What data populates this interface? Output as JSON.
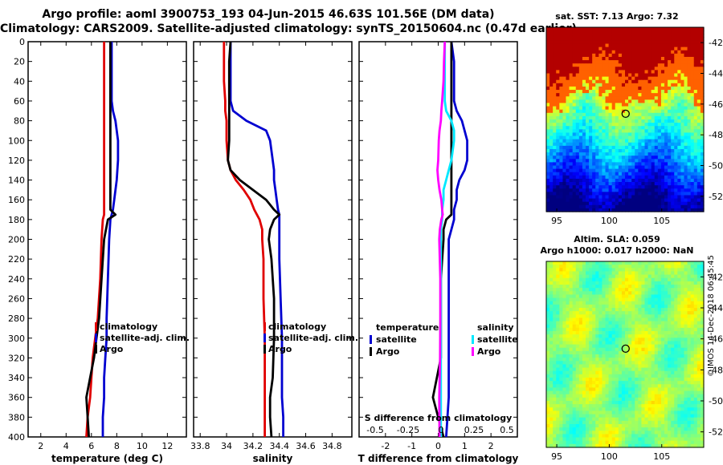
{
  "title_line1": "Argo profile: aoml 3900753_193 04-Jun-2015 46.63S 101.56E (DM data)",
  "title_line2": "Climatology: CARS2009. Satellite-adjusted climatology: synTS_20150604.nc (0.47d earlier)",
  "credit": "©IMOS 14-Dec-2018 06:45:45",
  "colors": {
    "climatology": "#e00000",
    "satellite": "#0000d0",
    "argo": "#000000",
    "s_diff": "#ff00ff",
    "t_diff": "#00e8ff"
  },
  "depth_ticks": [
    "0",
    "20",
    "40",
    "60",
    "80",
    "100",
    "120",
    "140",
    "160",
    "180",
    "200",
    "220",
    "240",
    "260",
    "280",
    "300",
    "320",
    "340",
    "360",
    "380",
    "400"
  ],
  "chart_data": [
    {
      "type": "line",
      "xlabel": "temperature (deg C)",
      "ylabel": "depth",
      "xlim": [
        1,
        13.5
      ],
      "ylim": [
        400,
        0
      ],
      "x_ticks": [
        "2",
        "4",
        "6",
        "8",
        "10",
        "12"
      ],
      "legend": [
        "climatology",
        "satellite-adj. clim.",
        "Argo"
      ],
      "depth": [
        0,
        20,
        40,
        60,
        70,
        80,
        90,
        100,
        120,
        140,
        160,
        170,
        175,
        180,
        200,
        240,
        280,
        300,
        320,
        340,
        360,
        380,
        400
      ],
      "series": [
        {
          "name": "climatology",
          "values": [
            7.0,
            7.0,
            7.0,
            7.0,
            7.0,
            7.0,
            7.0,
            7.0,
            7.0,
            7.0,
            7.0,
            7.0,
            7.0,
            6.9,
            6.8,
            6.7,
            6.5,
            6.3,
            6.1,
            6.0,
            5.9,
            5.7,
            5.6
          ]
        },
        {
          "name": "satellite-adj. clim.",
          "values": [
            7.6,
            7.6,
            7.6,
            7.6,
            7.7,
            7.9,
            8.0,
            8.1,
            8.1,
            8.0,
            7.8,
            7.7,
            7.6,
            7.5,
            7.4,
            7.3,
            7.2,
            7.2,
            7.1,
            7.0,
            7.0,
            6.9,
            6.9
          ]
        },
        {
          "name": "Argo",
          "values": [
            7.5,
            7.5,
            7.5,
            7.5,
            7.5,
            7.5,
            7.5,
            7.5,
            7.5,
            7.5,
            7.5,
            7.5,
            7.9,
            7.3,
            7.0,
            6.8,
            6.6,
            6.4,
            6.2,
            5.9,
            5.6,
            5.7,
            5.8
          ]
        }
      ]
    },
    {
      "type": "line",
      "xlabel": "salinity",
      "ylabel": "depth",
      "xlim": [
        33.75,
        34.95
      ],
      "ylim": [
        400,
        0
      ],
      "x_ticks": [
        "33.8",
        "34",
        "34.2",
        "34.4",
        "34.6",
        "34.8"
      ],
      "legend": [
        "climatology",
        "satellite-adj. clim.",
        "Argo"
      ],
      "depth": [
        0,
        20,
        40,
        60,
        70,
        80,
        90,
        100,
        120,
        130,
        140,
        150,
        160,
        170,
        175,
        180,
        190,
        200,
        220,
        260,
        300,
        340,
        360,
        380,
        400
      ],
      "series": [
        {
          "name": "climatology",
          "values": [
            33.98,
            33.98,
            33.98,
            33.99,
            33.99,
            34.0,
            34.0,
            34.0,
            34.01,
            34.03,
            34.07,
            34.13,
            34.18,
            34.21,
            34.23,
            34.25,
            34.27,
            34.27,
            34.28,
            34.28,
            34.29,
            34.29,
            34.29,
            34.29,
            34.29
          ]
        },
        {
          "name": "satellite-adj. clim.",
          "values": [
            34.03,
            34.03,
            34.03,
            34.03,
            34.05,
            34.15,
            34.3,
            34.33,
            34.35,
            34.36,
            34.36,
            34.37,
            34.38,
            34.39,
            34.4,
            34.4,
            34.4,
            34.4,
            34.4,
            34.41,
            34.42,
            34.42,
            34.42,
            34.43,
            34.43
          ]
        },
        {
          "name": "Argo",
          "values": [
            34.03,
            34.02,
            34.02,
            34.02,
            34.02,
            34.02,
            34.02,
            34.02,
            34.01,
            34.03,
            34.1,
            34.2,
            34.3,
            34.36,
            34.4,
            34.36,
            34.33,
            34.32,
            34.34,
            34.36,
            34.36,
            34.35,
            34.33,
            34.33,
            34.34
          ]
        }
      ]
    },
    {
      "type": "line",
      "xlabel": "T difference from climatology",
      "ylabel": "depth",
      "xlim": [
        -3,
        3
      ],
      "ylim": [
        400,
        0
      ],
      "x_ticks": [
        "-2",
        "-1",
        "0",
        "1",
        "2"
      ],
      "secondary_xlabel": "S difference from climatology",
      "secondary_x_ticks": [
        "-0.5",
        "-0.25",
        "0",
        "0.25",
        "0.5"
      ],
      "legend_left": [
        "temperature",
        "satellite",
        "Argo"
      ],
      "legend_right": [
        "salinity",
        "satellite",
        "Argo"
      ],
      "depth": [
        0,
        20,
        40,
        60,
        70,
        80,
        90,
        100,
        120,
        130,
        140,
        150,
        160,
        170,
        175,
        180,
        190,
        200,
        240,
        280,
        320,
        360,
        400
      ],
      "series": [
        {
          "name": "temperature satellite",
          "values": [
            0.5,
            0.6,
            0.6,
            0.6,
            0.7,
            0.9,
            1.0,
            1.1,
            1.1,
            1.0,
            0.8,
            0.7,
            0.7,
            0.6,
            0.6,
            0.6,
            0.5,
            0.4,
            0.4,
            0.4,
            0.4,
            0.4,
            0.3
          ]
        },
        {
          "name": "temperature Argo",
          "values": [
            0.5,
            0.5,
            0.5,
            0.5,
            0.5,
            0.5,
            0.5,
            0.5,
            0.5,
            0.5,
            0.5,
            0.5,
            0.5,
            0.5,
            0.5,
            0.3,
            0.2,
            0.2,
            0.1,
            0.1,
            0.1,
            -0.2,
            0.2
          ]
        },
        {
          "name": "salinity satellite",
          "values": [
            0.25,
            0.25,
            0.25,
            0.25,
            0.3,
            0.5,
            0.6,
            0.6,
            0.5,
            0.4,
            0.3,
            0.2,
            0.2,
            0.15,
            0.15,
            0.15,
            0.1,
            0.1,
            0.1,
            0.1,
            0.1,
            0.1,
            0.1
          ]
        },
        {
          "name": "salinity Argo",
          "values": [
            0.25,
            0.22,
            0.2,
            0.15,
            0.12,
            0.1,
            0.05,
            0.02,
            0.0,
            -0.03,
            0.0,
            0.05,
            0.12,
            0.15,
            0.17,
            0.12,
            0.06,
            0.04,
            0.08,
            0.08,
            0.07,
            0.04,
            0.05
          ]
        }
      ]
    },
    {
      "type": "heatmap",
      "title": "sat. SST: 7.13 Argo: 7.32",
      "x_ticks": [
        "95",
        "100",
        "105"
      ],
      "y_ticks": [
        "-42",
        "-44",
        "-46",
        "-48",
        "-50",
        "-52"
      ],
      "xlim": [
        94,
        109
      ],
      "ylim": [
        -53,
        -41
      ],
      "argo_position": {
        "lon": 101.56,
        "lat": -46.63
      }
    },
    {
      "type": "heatmap",
      "title_line1": "Altim. SLA: 0.059",
      "title_line2": "Argo h1000: 0.017 h2000: NaN",
      "x_ticks": [
        "95",
        "100",
        "105"
      ],
      "y_ticks": [
        "-42",
        "-44",
        "-46",
        "-48",
        "-50",
        "-52"
      ],
      "xlim": [
        94,
        109
      ],
      "ylim": [
        -53,
        -41
      ],
      "argo_position": {
        "lon": 101.56,
        "lat": -46.63
      }
    }
  ]
}
